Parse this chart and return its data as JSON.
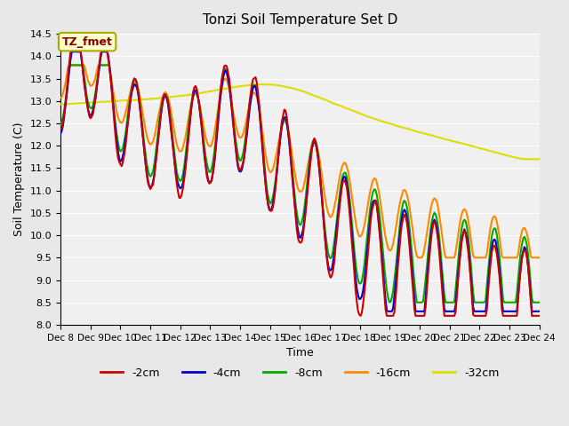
{
  "title": "Tonzi Soil Temperature Set D",
  "xlabel": "Time",
  "ylabel": "Soil Temperature (C)",
  "ylim": [
    8.0,
    14.5
  ],
  "yticks": [
    8.0,
    8.5,
    9.0,
    9.5,
    10.0,
    10.5,
    11.0,
    11.5,
    12.0,
    12.5,
    13.0,
    13.5,
    14.0,
    14.5
  ],
  "xtick_positions": [
    8,
    9,
    10,
    11,
    12,
    13,
    14,
    15,
    16,
    17,
    18,
    19,
    20,
    21,
    22,
    23,
    24
  ],
  "xtick_labels": [
    "Dec 8",
    "Dec 9",
    "Dec 10",
    "Dec 11",
    "Dec 12",
    "Dec 13",
    "Dec 14",
    "Dec 15",
    "Dec 16",
    "Dec 17",
    "Dec 18",
    "Dec 19",
    "Dec 20",
    "Dec 21",
    "Dec 22",
    "Dec 23",
    "Dec 24"
  ],
  "colors": {
    "-2cm": "#cc0000",
    "-4cm": "#0000cc",
    "-8cm": "#00aa00",
    "-16cm": "#ff8800",
    "-32cm": "#dddd00"
  },
  "legend_labels": [
    "-2cm",
    "-4cm",
    "-8cm",
    "-16cm",
    "-32cm"
  ],
  "annotation_label": "TZ_fmet",
  "annotation_bg": "#ffffcc",
  "annotation_border": "#aaaa00",
  "annotation_text_color": "#880000",
  "background_color": "#e8e8e8",
  "plot_bg": "#f0f0f0",
  "n_points": 384,
  "time_start": 8,
  "time_end": 24
}
